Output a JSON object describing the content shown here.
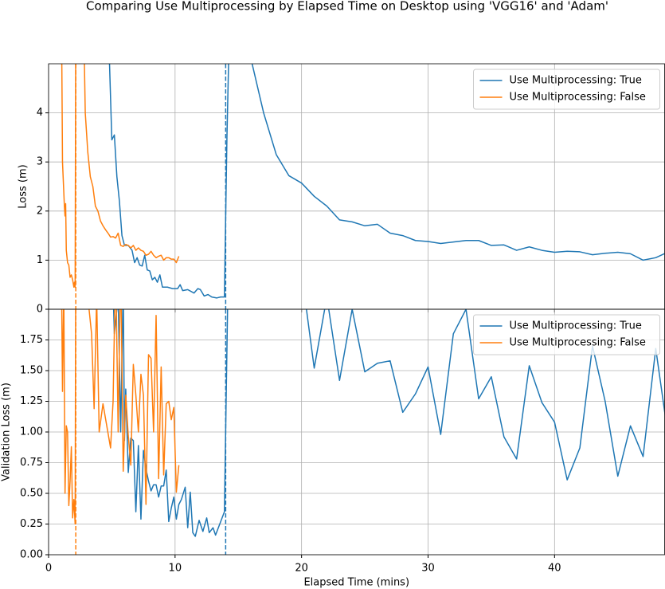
{
  "title": "Comparing Use Multiprocessing by Elapsed Time on Desktop using 'VGG16' and 'Adam'",
  "chart_data": [
    {
      "type": "line",
      "ylabel": "Loss (m)",
      "xlim": [
        0,
        48.7
      ],
      "ylim": [
        0,
        5.0
      ],
      "xticks": [
        0,
        10,
        20,
        30,
        40
      ],
      "yticks": [
        0,
        1,
        2,
        3,
        4
      ],
      "show_xtick_labels": false,
      "grid": true,
      "legend": "upper right",
      "series": [
        {
          "name": "Use Multiprocessing: True",
          "color": "#1f77b4",
          "vline": 14.0,
          "x": [
            4.7,
            5.0,
            5.2,
            5.4,
            5.6,
            5.8,
            6.0,
            6.3,
            6.6,
            6.8,
            7.0,
            7.2,
            7.4,
            7.6,
            7.8,
            8.0,
            8.2,
            8.4,
            8.6,
            8.8,
            9.0,
            9.4,
            9.8,
            10.2,
            10.4,
            10.6,
            11.0,
            11.5,
            11.8,
            12.0,
            12.3,
            12.6,
            12.9,
            13.3,
            13.6,
            13.9,
            14.1,
            14.4,
            16.0,
            17.0,
            18.0,
            19.0,
            20.0,
            21.0,
            22.0,
            23.0,
            24.0,
            25.0,
            26.0,
            27.0,
            28.0,
            29.0,
            30.0,
            31.0,
            32.0,
            33.0,
            34.0,
            35.0,
            36.0,
            37.0,
            38.0,
            39.0,
            40.0,
            41.0,
            42.0,
            43.0,
            44.0,
            45.0,
            46.0,
            47.0,
            48.0,
            49.0
          ],
          "values": [
            6,
            3.45,
            3.55,
            2.7,
            2.2,
            1.5,
            1.3,
            1.3,
            1.2,
            0.95,
            1.05,
            0.9,
            0.88,
            1.1,
            0.8,
            0.78,
            0.6,
            0.65,
            0.55,
            0.7,
            0.45,
            0.45,
            0.42,
            0.42,
            0.5,
            0.38,
            0.4,
            0.33,
            0.42,
            0.4,
            0.27,
            0.3,
            0.25,
            0.23,
            0.25,
            0.25,
            3.5,
            7,
            5.1,
            4.0,
            3.15,
            2.72,
            2.57,
            2.3,
            2.1,
            1.82,
            1.78,
            1.7,
            1.73,
            1.55,
            1.5,
            1.4,
            1.38,
            1.34,
            1.37,
            1.4,
            1.4,
            1.3,
            1.31,
            1.2,
            1.27,
            1.2,
            1.16,
            1.18,
            1.17,
            1.11,
            1.14,
            1.16,
            1.13,
            1.0,
            1.05,
            1.17
          ]
        },
        {
          "name": "Use Multiprocessing: False",
          "color": "#ff7f0e",
          "vline": 2.15,
          "x": [
            1.0,
            1.05,
            1.1,
            1.2,
            1.25,
            1.3,
            1.35,
            1.4,
            1.5,
            1.6,
            1.7,
            1.8,
            1.9,
            2.0,
            2.05,
            2.1,
            2.15,
            2.7,
            2.9,
            3.1,
            3.3,
            3.5,
            3.7,
            3.9,
            4.1,
            4.3,
            4.5,
            4.7,
            4.9,
            5.1,
            5.3,
            5.5,
            5.7,
            5.9,
            6.1,
            6.3,
            6.5,
            6.7,
            6.9,
            7.1,
            7.3,
            7.5,
            7.7,
            7.9,
            8.1,
            8.3,
            8.5,
            8.7,
            8.9,
            9.1,
            9.3,
            9.5,
            9.7,
            9.9,
            10.1,
            10.3
          ],
          "values": [
            6,
            4.9,
            3.0,
            2.4,
            2.1,
            1.9,
            2.15,
            1.2,
            0.95,
            0.9,
            0.65,
            0.7,
            0.6,
            0.45,
            0.55,
            0.45,
            6,
            7,
            4,
            3.2,
            2.7,
            2.5,
            2.1,
            2.0,
            1.8,
            1.7,
            1.62,
            1.55,
            1.47,
            1.48,
            1.45,
            1.55,
            1.3,
            1.28,
            1.32,
            1.3,
            1.25,
            1.3,
            1.2,
            1.25,
            1.2,
            1.18,
            1.1,
            1.12,
            1.18,
            1.1,
            1.05,
            1.08,
            1.1,
            1.0,
            1.05,
            1.05,
            1.02,
            1.02,
            0.95,
            1.08
          ]
        }
      ]
    },
    {
      "type": "line",
      "ylabel": "Validation Loss (m)",
      "xlabel": "Elapsed Time (mins)",
      "xlim": [
        0,
        48.7
      ],
      "ylim": [
        0,
        2.0
      ],
      "xticks": [
        0,
        10,
        20,
        30,
        40
      ],
      "yticks": [
        {
          "value": 0,
          "label": "0.00"
        },
        0.25,
        {
          "value": 0.5,
          "label": "0.50"
        },
        0.75,
        {
          "value": 1,
          "label": "1.00"
        },
        1.25,
        {
          "value": 1.5,
          "label": "1.50"
        },
        1.75
      ],
      "show_xtick_labels": true,
      "grid": true,
      "legend": "upper right",
      "series": [
        {
          "name": "Use Multiprocessing: True",
          "color": "#1f77b4",
          "vline": 14.0,
          "x": [
            5.0,
            5.2,
            5.5,
            5.7,
            5.9,
            6.0,
            6.1,
            6.3,
            6.5,
            6.7,
            6.9,
            7.1,
            7.3,
            7.5,
            7.7,
            7.9,
            8.1,
            8.3,
            8.5,
            8.7,
            8.9,
            9.1,
            9.3,
            9.5,
            9.7,
            9.9,
            10.1,
            10.3,
            10.5,
            10.8,
            11.0,
            11.2,
            11.4,
            11.6,
            11.9,
            12.2,
            12.5,
            12.7,
            13.0,
            13.2,
            13.9,
            14.3,
            20.0,
            21.0,
            22.0,
            23.0,
            24.0,
            25.0,
            26.0,
            27.0,
            28.0,
            29.0,
            30.0,
            31.0,
            32.0,
            33.0,
            34.0,
            35.0,
            36.0,
            37.0,
            38.0,
            39.0,
            40.0,
            41.0,
            42.0,
            43.0,
            44.0,
            45.0,
            46.0,
            47.0,
            48.0,
            49.0
          ],
          "values": [
            2.5,
            1.8,
            2.1,
            1.0,
            2.2,
            0.93,
            1.35,
            0.67,
            0.95,
            0.93,
            0.35,
            0.89,
            0.29,
            0.85,
            0.7,
            0.6,
            0.52,
            0.57,
            0.57,
            0.47,
            0.56,
            0.56,
            0.69,
            0.27,
            0.38,
            0.47,
            0.29,
            0.41,
            0.45,
            0.55,
            0.22,
            0.51,
            0.18,
            0.15,
            0.28,
            0.19,
            0.3,
            0.18,
            0.22,
            0.16,
            0.35,
            3,
            2.3,
            1.52,
            2.1,
            1.42,
            2.0,
            1.49,
            1.56,
            1.58,
            1.16,
            1.31,
            1.53,
            0.98,
            1.8,
            2.0,
            1.27,
            1.45,
            0.96,
            0.78,
            1.54,
            1.24,
            1.08,
            0.61,
            0.87,
            1.7,
            1.25,
            0.64,
            1.05,
            0.8,
            1.68,
            0.95
          ]
        },
        {
          "name": "Use Multiprocessing: False",
          "color": "#ff7f0e",
          "vline": 2.15,
          "x": [
            1.0,
            1.1,
            1.2,
            1.3,
            1.4,
            1.5,
            1.6,
            1.7,
            1.8,
            1.9,
            2.0,
            2.1,
            2.15,
            3.0,
            3.2,
            3.4,
            3.6,
            3.8,
            4.0,
            4.3,
            4.6,
            4.9,
            5.1,
            5.3,
            5.5,
            5.7,
            5.9,
            6.1,
            6.3,
            6.5,
            6.7,
            6.9,
            7.1,
            7.3,
            7.5,
            7.7,
            7.9,
            8.1,
            8.3,
            8.5,
            8.7,
            8.9,
            9.1,
            9.3,
            9.5,
            9.7,
            9.9,
            10.1,
            10.3
          ],
          "values": [
            2.5,
            1.33,
            2.2,
            0.5,
            1.05,
            1.0,
            0.4,
            0.6,
            0.88,
            0.3,
            0.45,
            0.25,
            2.5,
            2.5,
            2.0,
            1.8,
            1.19,
            2.1,
            1.0,
            1.23,
            1.05,
            0.87,
            1.25,
            2.4,
            1.0,
            2.4,
            0.68,
            1.3,
            0.97,
            0.73,
            1.55,
            1.3,
            1.0,
            1.47,
            1.3,
            0.41,
            1.63,
            1.6,
            1.0,
            1.95,
            0.62,
            1.53,
            0.65,
            1.23,
            1.25,
            1.1,
            1.2,
            0.51,
            0.73
          ]
        }
      ]
    }
  ]
}
